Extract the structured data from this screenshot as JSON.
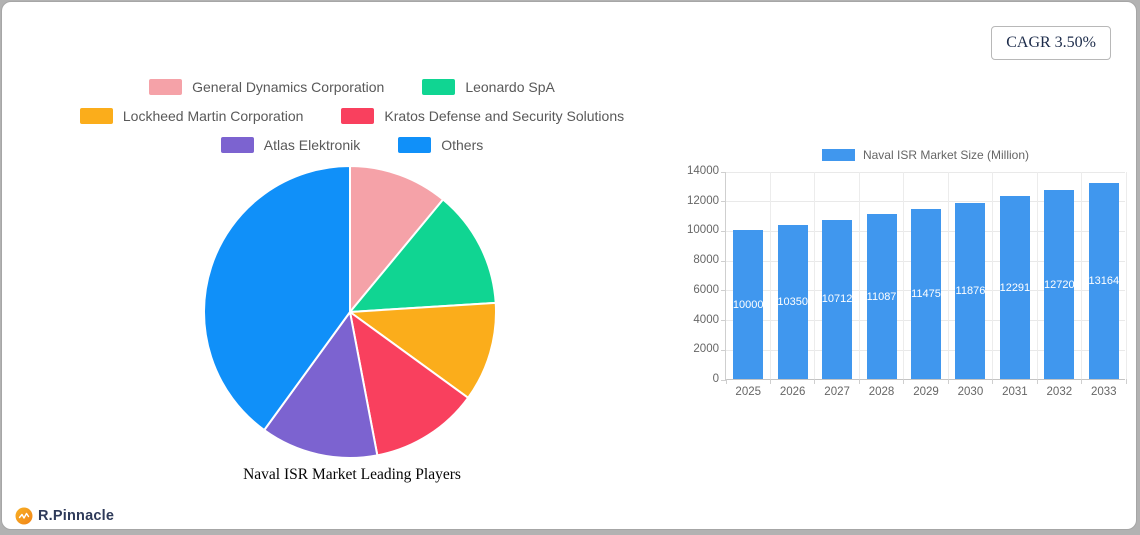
{
  "page": {
    "cagr_badge": "CAGR 3.50%",
    "brand": "R.Pinnacle"
  },
  "colors": {
    "card_background": "#ffffff",
    "page_background": "#b2b2b2",
    "legend_text": "#595959",
    "axis_text": "#666666",
    "badge_text": "#1c2b4a",
    "brand_orange": "#f59a18",
    "brand_navy": "#2e3a59"
  },
  "chart_data": [
    {
      "type": "pie",
      "title": "Naval ISR Market Leading Players",
      "labels": [
        "General Dynamics Corporation",
        "Leonardo SpA",
        "Lockheed Martin Corporation",
        "Kratos Defense and Security Solutions",
        "Atlas Elektronik",
        "Others"
      ],
      "values": [
        11,
        13,
        11,
        12,
        13,
        40
      ],
      "colors": [
        "#f5a2a8",
        "#10d592",
        "#fbad1b",
        "#f9405e",
        "#7c63d0",
        "#1090f9"
      ],
      "legend_position": "top",
      "start_angle": "12-oclock",
      "direction": "clockwise"
    },
    {
      "type": "bar",
      "legend_label": "Naval ISR Market Size (Million)",
      "categories": [
        "2025",
        "2026",
        "2027",
        "2028",
        "2029",
        "2030",
        "2031",
        "2032",
        "2033"
      ],
      "values": [
        10000,
        10350,
        10712,
        11087,
        11475,
        11876,
        12291,
        12720,
        13164
      ],
      "bar_color": "#4097ee",
      "value_label_color": "#ffffff",
      "ylim": [
        0,
        14000
      ],
      "ytick_step": 2000,
      "grid": true,
      "legend_position": "top"
    }
  ]
}
